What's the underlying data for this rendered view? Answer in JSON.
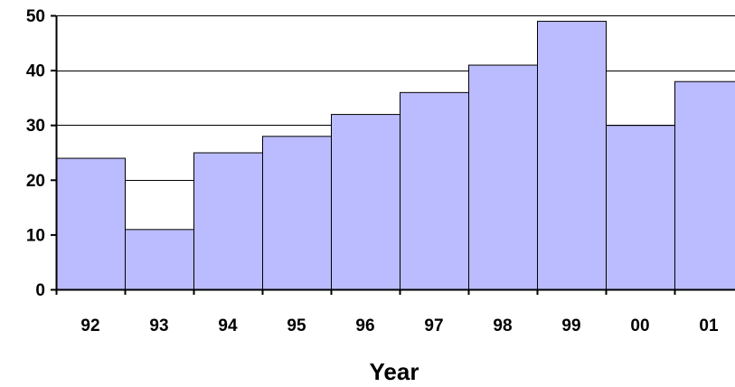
{
  "chart_data": {
    "type": "bar",
    "categories": [
      "92",
      "93",
      "94",
      "95",
      "96",
      "97",
      "98",
      "99",
      "00",
      "01"
    ],
    "values": [
      24,
      11,
      25,
      28,
      32,
      36,
      41,
      49,
      30,
      38
    ],
    "title": "",
    "xlabel": "Year",
    "ylabel": "",
    "ylim": [
      0,
      50
    ],
    "yticks": [
      "0",
      "10",
      "20",
      "30",
      "40",
      "50"
    ],
    "grid": "horizontal",
    "legend": "none",
    "colors": {
      "bar_fill": "#bbbbff",
      "bar_stroke": "#000000",
      "grid": "#000000",
      "axis": "#000000"
    }
  }
}
